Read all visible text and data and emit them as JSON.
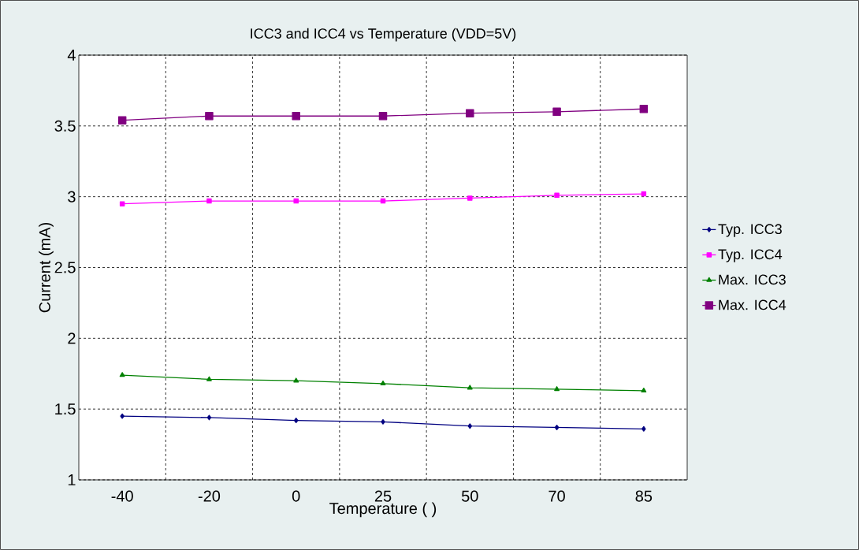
{
  "chart_data": {
    "type": "line",
    "title": "ICC3 and ICC4 vs Temperature (VDD=5V)",
    "xlabel": "Temperature (    )",
    "ylabel": "Current (mA)",
    "categories": [
      "-40",
      "-20",
      "0",
      "25",
      "50",
      "70",
      "85"
    ],
    "series": [
      {
        "name": "Typ. ICC3",
        "color": "#000080",
        "marker": "diamond",
        "values": [
          1.45,
          1.44,
          1.42,
          1.41,
          1.38,
          1.37,
          1.36
        ]
      },
      {
        "name": "Typ. ICC4",
        "color": "#ff00ff",
        "marker": "square",
        "values": [
          2.95,
          2.97,
          2.97,
          2.97,
          2.99,
          3.01,
          3.02
        ]
      },
      {
        "name": "Max. ICC3",
        "color": "#008000",
        "marker": "triangle",
        "values": [
          1.74,
          1.71,
          1.7,
          1.68,
          1.65,
          1.64,
          1.63
        ]
      },
      {
        "name": "Max. ICC4",
        "color": "#800080",
        "marker": "square",
        "values": [
          3.54,
          3.57,
          3.57,
          3.57,
          3.59,
          3.6,
          3.62
        ]
      }
    ],
    "ylim": [
      1,
      4
    ],
    "yticks": [
      1,
      1.5,
      2,
      2.5,
      3,
      3.5,
      4
    ],
    "grid": true,
    "legend": "right",
    "line_style": "solid"
  }
}
